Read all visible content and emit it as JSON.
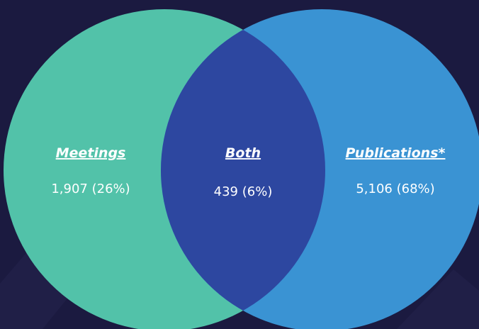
{
  "regions": [
    {
      "label": "Meetings",
      "value": "1,907 (26%)"
    },
    {
      "label": "Both",
      "value": "439 (6%)"
    },
    {
      "label": "Publications*",
      "value": "5,106 (68%)"
    }
  ]
}
